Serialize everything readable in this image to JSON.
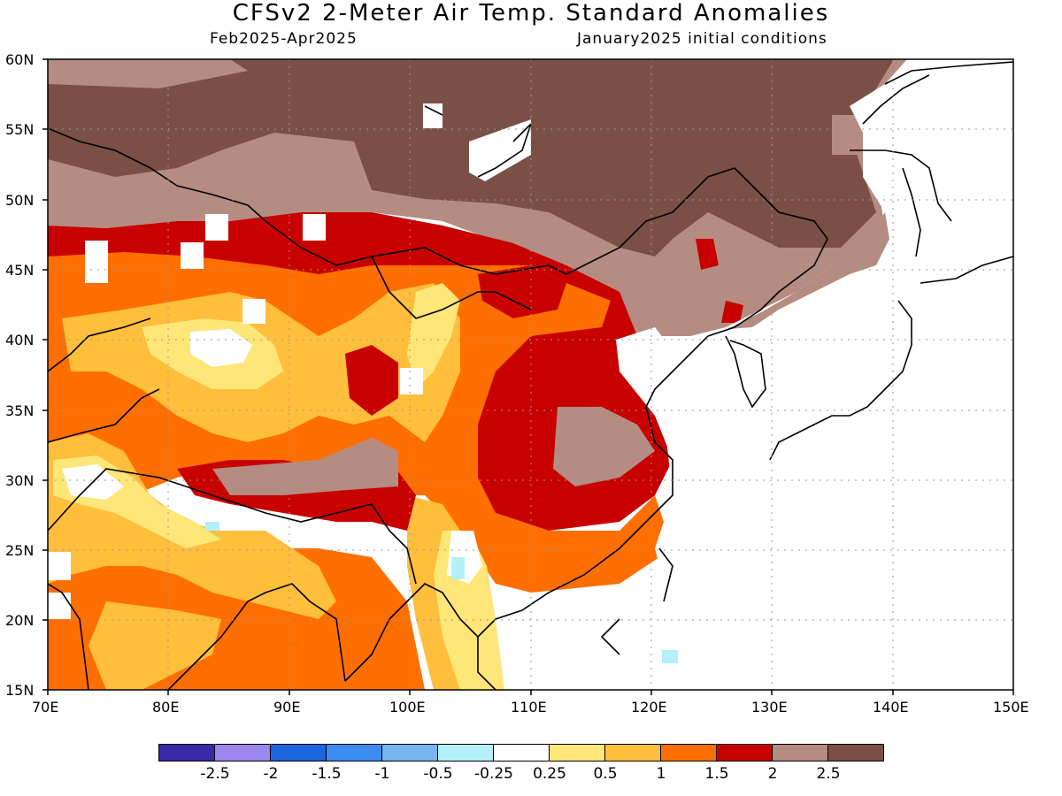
{
  "title": "CFSv2 2-Meter Air Temp. Standard Anomalies",
  "subtitle_left": "Feb2025-Apr2025",
  "subtitle_right": "January2025 initial conditions",
  "map": {
    "lat_labels": [
      "60N",
      "55N",
      "50N",
      "45N",
      "40N",
      "35N",
      "30N",
      "25N",
      "20N",
      "15N"
    ],
    "lon_labels": [
      "70E",
      "80E",
      "90E",
      "100E",
      "110E",
      "120E",
      "130E",
      "140E",
      "150E"
    ],
    "lon_range": [
      70,
      150
    ],
    "lat_range": [
      15,
      60
    ],
    "grid": "dotted"
  },
  "legend": {
    "colors": [
      "#3a28a8",
      "#9b87ee",
      "#1c64dc",
      "#3c8cf0",
      "#78b4f0",
      "#b4f0fa",
      "#ffffff",
      "#ffe678",
      "#ffbe3c",
      "#ff6e00",
      "#c80000",
      "#b48c82",
      "#7a5046"
    ],
    "tick_labels": [
      "-2.5",
      "-2",
      "-1.5",
      "-1",
      "-0.5",
      "-0.25",
      "0.25",
      "0.5",
      "1",
      "1.5",
      "2",
      "2.5"
    ]
  }
}
